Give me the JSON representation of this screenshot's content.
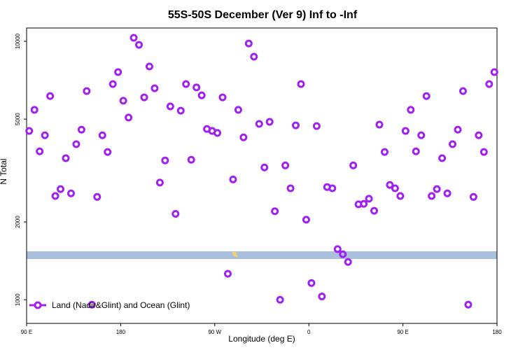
{
  "chart_data": {
    "type": "scatter",
    "title": "55S-50S December (Ver 9)   Inf to -Inf",
    "xlabel": "Longitude (deg E)",
    "ylabel": "N Total",
    "xlim": [
      90,
      540
    ],
    "xticks": [
      {
        "value": 90,
        "label": "90 E"
      },
      {
        "value": 180,
        "label": "180"
      },
      {
        "value": 270,
        "label": "90 W"
      },
      {
        "value": 360,
        "label": "0"
      },
      {
        "value": 450,
        "label": "90 E"
      },
      {
        "value": 540,
        "label": "180"
      }
    ],
    "ylim": [
      810,
      11260
    ],
    "yscale": "log",
    "yticks": [
      1000,
      2000,
      5000,
      10000
    ],
    "legend": "lower left",
    "series": [
      {
        "name": "Land (Nadir&Glint) and Ocean (Glint)",
        "color": "#a020f0",
        "x": [
          92.5,
          97.5,
          102.5,
          107.5,
          112.5,
          117.5,
          122.5,
          127.5,
          132.5,
          137.5,
          142.5,
          147.5,
          152.5,
          157.5,
          162.5,
          167.5,
          172.5,
          177.5,
          182.5,
          187.5,
          192.5,
          197.5,
          202.5,
          207.5,
          212.5,
          217.5,
          222.5,
          227.5,
          232.5,
          237.5,
          242.5,
          247.5,
          252.5,
          257.5,
          262.5,
          267.5,
          272.5,
          277.5,
          282.5,
          287.5,
          292.5,
          297.5,
          302.5,
          307.5,
          312.5,
          317.5,
          322.5,
          327.5,
          332.5,
          337.5,
          342.5,
          347.5,
          352.5,
          357.5,
          362.5,
          367.5,
          372.5,
          377.5,
          382.5,
          387.5,
          392.5,
          397.5,
          402.5,
          407.5,
          412.5,
          417.5,
          422.5,
          427.5,
          432.5,
          437.5,
          442.5,
          447.5,
          452.5,
          457.5,
          462.5,
          467.5,
          472.5,
          477.5,
          482.5,
          487.5,
          492.5,
          497.5,
          502.5,
          507.5,
          512.5,
          517.5,
          522.5,
          527.5,
          532.5,
          537.5
        ],
        "values": [
          4500,
          5430,
          3750,
          4330,
          6140,
          2520,
          2680,
          3530,
          2580,
          4000,
          4550,
          6420,
          957,
          2500,
          4330,
          3730,
          6830,
          7600,
          5890,
          5070,
          10320,
          9690,
          6070,
          7990,
          6580,
          2840,
          3460,
          5600,
          2150,
          5390,
          6830,
          3480,
          6630,
          6180,
          4580,
          4500,
          4420,
          6070,
          1260,
          2920,
          5430,
          4250,
          9810,
          8720,
          4790,
          3250,
          4880,
          2200,
          1000,
          3310,
          2700,
          4730,
          6830,
          2040,
          1160,
          4700,
          1030,
          2730,
          2700,
          1570,
          1500,
          1400,
          3310,
          2340,
          2350,
          2460,
          2210,
          4760,
          3730,
          2780,
          2700,
          2520,
          4500,
          5430,
          3750,
          4330,
          6140,
          2520,
          2680,
          3530,
          2580,
          4000,
          4550,
          6420,
          957,
          2500,
          4330,
          3730,
          6830,
          7600
        ]
      }
    ]
  }
}
